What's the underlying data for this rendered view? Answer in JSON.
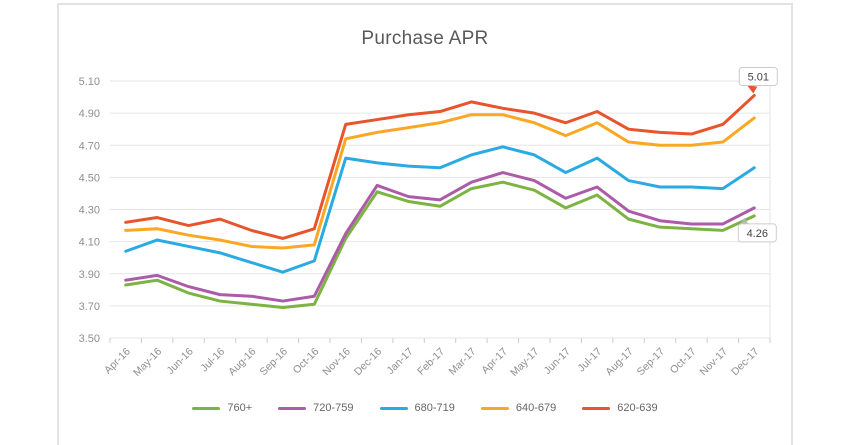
{
  "title": "Purchase APR",
  "chart_data": {
    "type": "line",
    "title": "Purchase APR",
    "xlabel": "",
    "ylabel": "",
    "ylim": [
      3.5,
      5.1
    ],
    "yticks": [
      3.5,
      3.7,
      3.9,
      4.1,
      4.3,
      4.5,
      4.7,
      4.9,
      5.1
    ],
    "grid": true,
    "legend_position": "bottom",
    "categories": [
      "Apr-16",
      "May-16",
      "Jun-16",
      "Jul-16",
      "Aug-16",
      "Sep-16",
      "Oct-16",
      "Nov-16",
      "Dec-16",
      "Jan-17",
      "Feb-17",
      "Mar-17",
      "Apr-17",
      "May-17",
      "Jun-17",
      "Jul-17",
      "Aug-17",
      "Sep-17",
      "Oct-17",
      "Nov-17",
      "Dec-17"
    ],
    "series": [
      {
        "name": "760+",
        "color": "#7CB342",
        "values": [
          3.83,
          3.86,
          3.78,
          3.73,
          3.71,
          3.69,
          3.71,
          4.12,
          4.41,
          4.35,
          4.32,
          4.43,
          4.47,
          4.42,
          4.31,
          4.39,
          4.24,
          4.19,
          4.18,
          4.17,
          4.26
        ]
      },
      {
        "name": "720-759",
        "color": "#AC5BA9",
        "values": [
          3.86,
          3.89,
          3.82,
          3.77,
          3.76,
          3.73,
          3.76,
          4.15,
          4.45,
          4.38,
          4.36,
          4.47,
          4.53,
          4.48,
          4.37,
          4.44,
          4.29,
          4.23,
          4.21,
          4.21,
          4.31
        ]
      },
      {
        "name": "680-719",
        "color": "#29ABE2",
        "values": [
          4.04,
          4.11,
          4.07,
          4.03,
          3.97,
          3.91,
          3.98,
          4.62,
          4.59,
          4.57,
          4.56,
          4.64,
          4.69,
          4.64,
          4.53,
          4.62,
          4.48,
          4.44,
          4.44,
          4.43,
          4.56
        ]
      },
      {
        "name": "640-679",
        "color": "#F9A825",
        "values": [
          4.17,
          4.18,
          4.14,
          4.11,
          4.07,
          4.06,
          4.08,
          4.74,
          4.78,
          4.81,
          4.84,
          4.89,
          4.89,
          4.84,
          4.76,
          4.84,
          4.72,
          4.7,
          4.7,
          4.72,
          4.87
        ]
      },
      {
        "name": "620-639",
        "color": "#E8542C",
        "values": [
          4.22,
          4.25,
          4.2,
          4.24,
          4.17,
          4.12,
          4.18,
          4.83,
          4.86,
          4.89,
          4.91,
          4.97,
          4.93,
          4.9,
          4.84,
          4.91,
          4.8,
          4.78,
          4.77,
          4.83,
          5.01
        ]
      }
    ],
    "callouts": [
      {
        "text": "5.01",
        "series": "620-639",
        "pointer_color": "#E8542C"
      },
      {
        "text": "4.26",
        "series": "760+",
        "pointer_color": "#b5b5b5"
      }
    ]
  },
  "style": {
    "grid_color": "#e6e6e6",
    "tick_color": "#cccccc",
    "axis_text_color": "#8f8f8f",
    "callout_border": "#cccccc",
    "callout_text": "#444444"
  }
}
